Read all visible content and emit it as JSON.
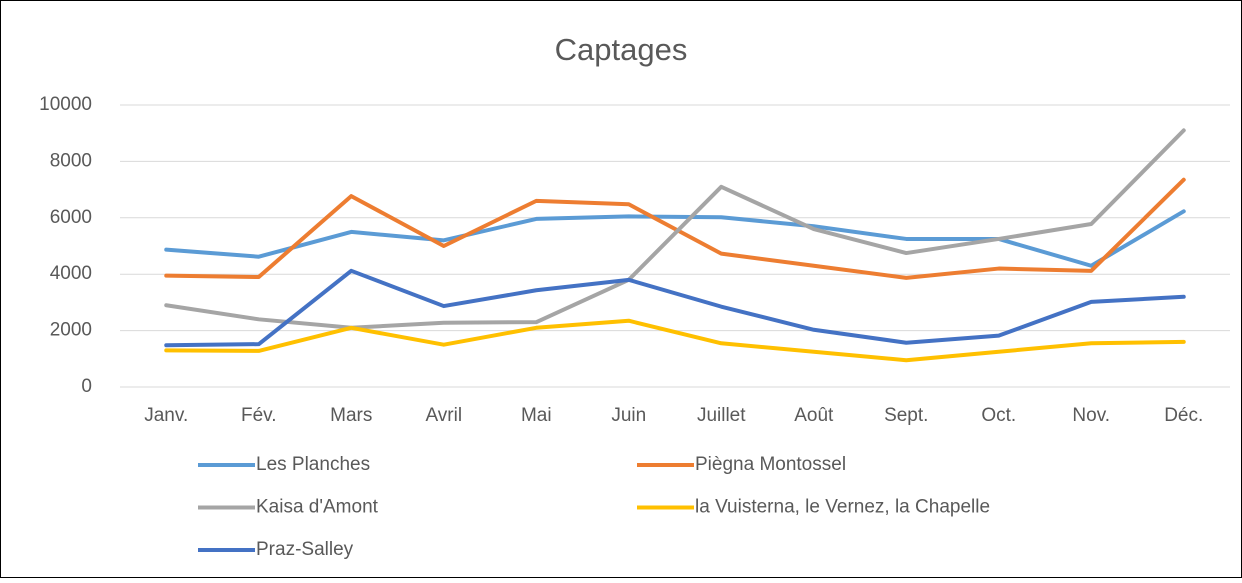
{
  "chart_data": {
    "type": "line",
    "title": "Captages",
    "categories": [
      "Janv.",
      "Fév.",
      "Mars",
      "Avril",
      "Mai",
      "Juin",
      "Juillet",
      "Août",
      "Sept.",
      "Oct.",
      "Nov.",
      "Déc."
    ],
    "series": [
      {
        "name": "Les Planches",
        "color": "#5b9bd5",
        "values": [
          4870,
          4620,
          5500,
          5200,
          5960,
          6050,
          6020,
          5700,
          5250,
          5250,
          4300,
          6230
        ]
      },
      {
        "name": "Piègna Montossel",
        "color": "#ed7d31",
        "values": [
          3950,
          3900,
          6770,
          5000,
          6600,
          6480,
          4730,
          4300,
          3870,
          4200,
          4120,
          7350
        ]
      },
      {
        "name": "Kaisa d'Amont",
        "color": "#a5a5a5",
        "values": [
          2900,
          2400,
          2100,
          2280,
          2300,
          3800,
          7100,
          5600,
          4750,
          5250,
          5780,
          9100
        ]
      },
      {
        "name": "la Vuisterna, le Vernez, la Chapelle",
        "color": "#ffc000",
        "values": [
          1300,
          1280,
          2100,
          1500,
          2100,
          2350,
          1550,
          1250,
          950,
          1250,
          1550,
          1600
        ]
      },
      {
        "name": "Praz-Salley",
        "color": "#4472c4",
        "values": [
          1480,
          1520,
          4120,
          2870,
          3430,
          3800,
          2850,
          2030,
          1570,
          1820,
          3020,
          3200
        ]
      }
    ],
    "ylim": [
      0,
      10000
    ],
    "yticks": [
      0,
      2000,
      4000,
      6000,
      8000,
      10000
    ],
    "grid": true,
    "legend": "bottom"
  }
}
